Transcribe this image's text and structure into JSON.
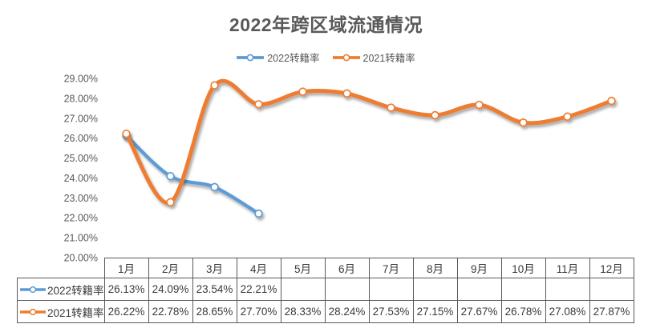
{
  "title": "2022年跨区域流通情况",
  "legend": [
    {
      "name": "2022转籍率",
      "color": "#5B9BD5"
    },
    {
      "name": "2021转籍率",
      "color": "#ED7D31"
    }
  ],
  "colors": {
    "series_2022": "#5B9BD5",
    "series_2021": "#ED7D31",
    "text_gray": "#595959"
  },
  "chart_data": {
    "type": "line",
    "title": "2022年跨区域流通情况",
    "categories": [
      "1月",
      "2月",
      "3月",
      "4月",
      "5月",
      "6月",
      "7月",
      "8月",
      "9月",
      "10月",
      "11月",
      "12月"
    ],
    "series": [
      {
        "name": "2022转籍率",
        "color": "#5B9BD5",
        "values": [
          26.13,
          24.09,
          23.54,
          22.21,
          null,
          null,
          null,
          null,
          null,
          null,
          null,
          null
        ]
      },
      {
        "name": "2021转籍率",
        "color": "#ED7D31",
        "values": [
          26.22,
          22.78,
          28.65,
          27.7,
          28.33,
          28.24,
          27.53,
          27.15,
          27.67,
          26.78,
          27.08,
          27.87
        ]
      }
    ],
    "ylim": [
      20,
      29
    ],
    "yticks": [
      "29.00%",
      "28.00%",
      "27.00%",
      "26.00%",
      "25.00%",
      "24.00%",
      "23.00%",
      "22.00%",
      "21.00%",
      "20.00%"
    ],
    "smooth": true,
    "markers": true,
    "grid": false,
    "legend_position": "top",
    "data_table_shown": true
  },
  "table": {
    "columns": [
      "1月",
      "2月",
      "3月",
      "4月",
      "5月",
      "6月",
      "7月",
      "8月",
      "9月",
      "10月",
      "11月",
      "12月"
    ],
    "rows": [
      {
        "label": "2022转籍率",
        "color": "#5B9BD5",
        "cells": [
          "26.13%",
          "24.09%",
          "23.54%",
          "22.21%",
          "",
          "",
          "",
          "",
          "",
          "",
          "",
          ""
        ]
      },
      {
        "label": "2021转籍率",
        "color": "#ED7D31",
        "cells": [
          "26.22%",
          "22.78%",
          "28.65%",
          "27.70%",
          "28.33%",
          "28.24%",
          "27.53%",
          "27.15%",
          "27.67%",
          "26.78%",
          "27.08%",
          "27.87%"
        ]
      }
    ]
  }
}
